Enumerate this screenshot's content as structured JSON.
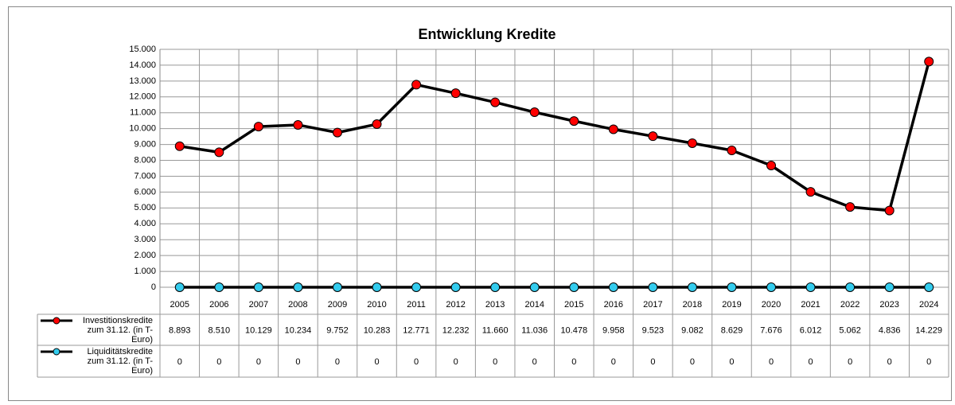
{
  "chart_data": {
    "type": "line",
    "title": "Entwicklung Kredite",
    "categories": [
      "2005",
      "2006",
      "2007",
      "2008",
      "2009",
      "2010",
      "2011",
      "2012",
      "2013",
      "2014",
      "2015",
      "2016",
      "2017",
      "2018",
      "2019",
      "2020",
      "2021",
      "2022",
      "2023",
      "2024"
    ],
    "series": [
      {
        "name": "Investitionskredite zum 31.12. (in T-Euro)",
        "color": "#ff0000",
        "line_color": "#000000",
        "values": [
          8893,
          8510,
          10129,
          10234,
          9752,
          10283,
          12771,
          12232,
          11660,
          11036,
          10478,
          9958,
          9523,
          9082,
          8629,
          7676,
          6012,
          5062,
          4836,
          14229
        ],
        "value_labels": [
          "8.893",
          "8.510",
          "10.129",
          "10.234",
          "9.752",
          "10.283",
          "12.771",
          "12.232",
          "11.660",
          "11.036",
          "10.478",
          "9.958",
          "9.523",
          "9.082",
          "8.629",
          "7.676",
          "6.012",
          "5.062",
          "4.836",
          "14.229"
        ]
      },
      {
        "name": "Liquiditätskredite zum 31.12. (in T-Euro)",
        "color": "#33ccee",
        "line_color": "#000000",
        "values": [
          0,
          0,
          0,
          0,
          0,
          0,
          0,
          0,
          0,
          0,
          0,
          0,
          0,
          0,
          0,
          0,
          0,
          0,
          0,
          0
        ]
      }
    ],
    "ylim": [
      0,
      15000
    ],
    "yticks": [
      0,
      {
        "value": 1000,
        "label": "1.000"
      },
      {
        "value": 2000,
        "label": "2.000"
      },
      {
        "value": 3000,
        "label": "3.000"
      },
      {
        "value": 4000,
        "label": "4.000"
      },
      {
        "value": 5000,
        "label": "5.000"
      },
      {
        "value": 6000,
        "label": "6.000"
      },
      {
        "value": 7000,
        "label": "7.000"
      },
      {
        "value": 8000,
        "label": "8.000"
      },
      {
        "value": 9000,
        "label": "9.000"
      },
      {
        "value": 10000,
        "label": "10.000"
      },
      {
        "value": 11000,
        "label": "11.000"
      },
      {
        "value": 12000,
        "label": "12.000"
      },
      {
        "value": 13000,
        "label": "13.000"
      },
      {
        "value": 14000,
        "label": "14.000"
      },
      {
        "value": 15000,
        "label": "15.000"
      }
    ],
    "grid": true,
    "data_table": true
  }
}
